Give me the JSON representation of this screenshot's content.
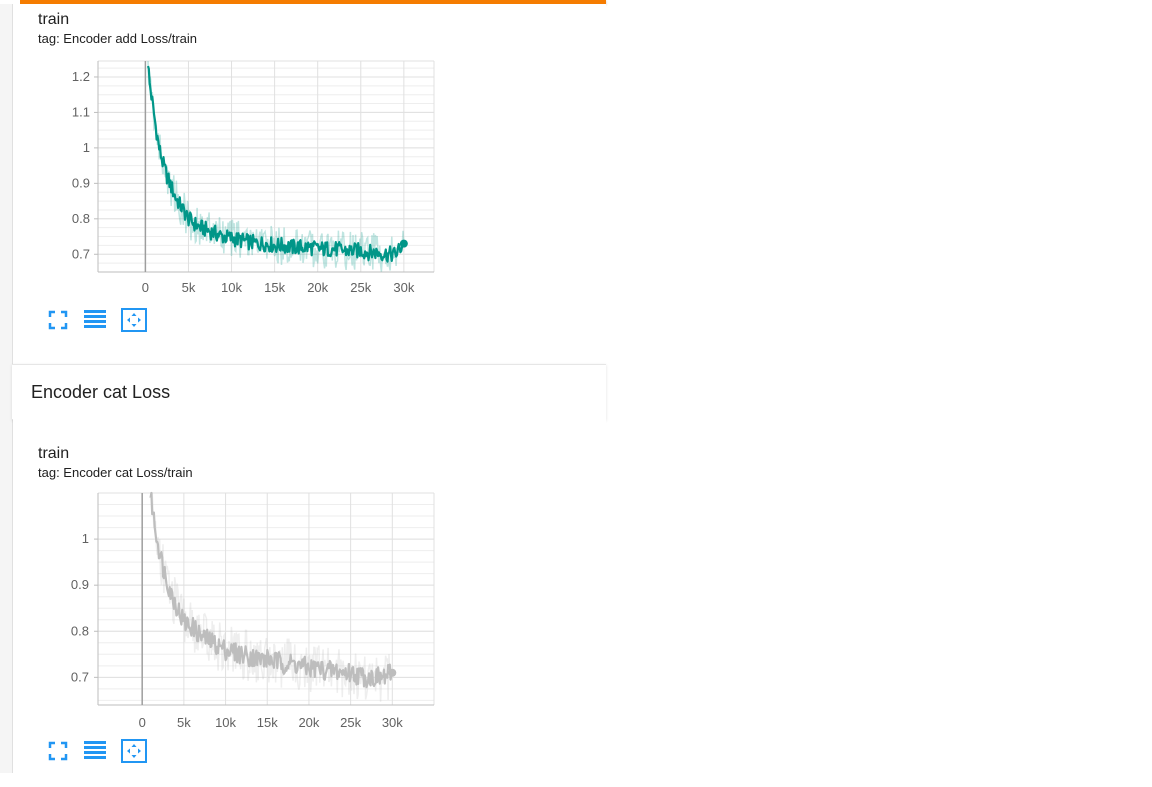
{
  "section": {
    "title": "Encoder cat Loss"
  },
  "cards": [
    {
      "title": "train",
      "tag": "tag: Encoder add Loss/train",
      "color": "#009688"
    },
    {
      "title": "train",
      "tag": "tag: Encoder cat Loss/train",
      "color": "#bdbdbd"
    }
  ],
  "toolbar": {
    "icons": [
      "fullscreen-icon",
      "data-table-icon",
      "fit-domain-icon"
    ],
    "accent": "#2196f3"
  },
  "chart_data": [
    {
      "type": "line",
      "title": "",
      "xlabel": "",
      "ylabel": "",
      "xlim": [
        -5500,
        33500
      ],
      "ylim": [
        0.65,
        1.245
      ],
      "x_ticks": [
        0,
        5000,
        10000,
        15000,
        20000,
        25000,
        30000
      ],
      "x_tick_labels": [
        "0",
        "5k",
        "10k",
        "15k",
        "20k",
        "25k",
        "30k"
      ],
      "y_ticks": [
        0.7,
        0.8,
        0.9,
        1.0,
        1.1,
        1.2
      ],
      "y_tick_labels": [
        "0.7",
        "0.8",
        "0.9",
        "1",
        "1.1",
        "1.2"
      ],
      "grid": true,
      "series": [
        {
          "color": "#009688",
          "x": [
            300,
            500,
            800,
            1200,
            1600,
            2000,
            2500,
            3000,
            3500,
            4000,
            4500,
            5000,
            6000,
            7000,
            8000,
            9000,
            10000,
            11000,
            12000,
            13000,
            14000,
            15000,
            16000,
            17000,
            18000,
            19000,
            20000,
            21000,
            22000,
            23000,
            24000,
            25000,
            26000,
            27000,
            28000,
            29000,
            30000
          ],
          "y": [
            1.245,
            1.18,
            1.13,
            1.06,
            1.0,
            0.96,
            0.92,
            0.89,
            0.86,
            0.84,
            0.82,
            0.8,
            0.78,
            0.77,
            0.76,
            0.75,
            0.745,
            0.74,
            0.735,
            0.73,
            0.73,
            0.725,
            0.725,
            0.72,
            0.72,
            0.72,
            0.715,
            0.715,
            0.715,
            0.71,
            0.71,
            0.71,
            0.705,
            0.705,
            0.7,
            0.7,
            0.73
          ]
        }
      ]
    },
    {
      "type": "line",
      "title": "",
      "xlabel": "",
      "ylabel": "",
      "xlim": [
        -5300,
        35000
      ],
      "ylim": [
        0.64,
        1.1
      ],
      "x_ticks": [
        0,
        5000,
        10000,
        15000,
        20000,
        25000,
        30000
      ],
      "x_tick_labels": [
        "0",
        "5k",
        "10k",
        "15k",
        "20k",
        "25k",
        "30k"
      ],
      "y_ticks": [
        0.7,
        0.8,
        0.9,
        1.0
      ],
      "y_tick_labels": [
        "0.7",
        "0.8",
        "0.9",
        "1"
      ],
      "grid": true,
      "series": [
        {
          "color": "#bdbdbd",
          "x": [
            1000,
            1500,
            2000,
            2500,
            3000,
            3500,
            4000,
            4500,
            5000,
            6000,
            7000,
            8000,
            9000,
            10000,
            11000,
            12000,
            13000,
            14000,
            15000,
            16000,
            17000,
            18000,
            19000,
            20000,
            21000,
            22000,
            23000,
            24000,
            25000,
            26000,
            27000,
            28000,
            29000,
            30000
          ],
          "y": [
            1.1,
            1.03,
            0.98,
            0.94,
            0.91,
            0.88,
            0.86,
            0.84,
            0.82,
            0.81,
            0.79,
            0.78,
            0.77,
            0.76,
            0.755,
            0.75,
            0.745,
            0.74,
            0.74,
            0.735,
            0.73,
            0.73,
            0.725,
            0.72,
            0.72,
            0.715,
            0.715,
            0.71,
            0.71,
            0.705,
            0.7,
            0.7,
            0.7,
            0.71
          ]
        }
      ]
    }
  ]
}
